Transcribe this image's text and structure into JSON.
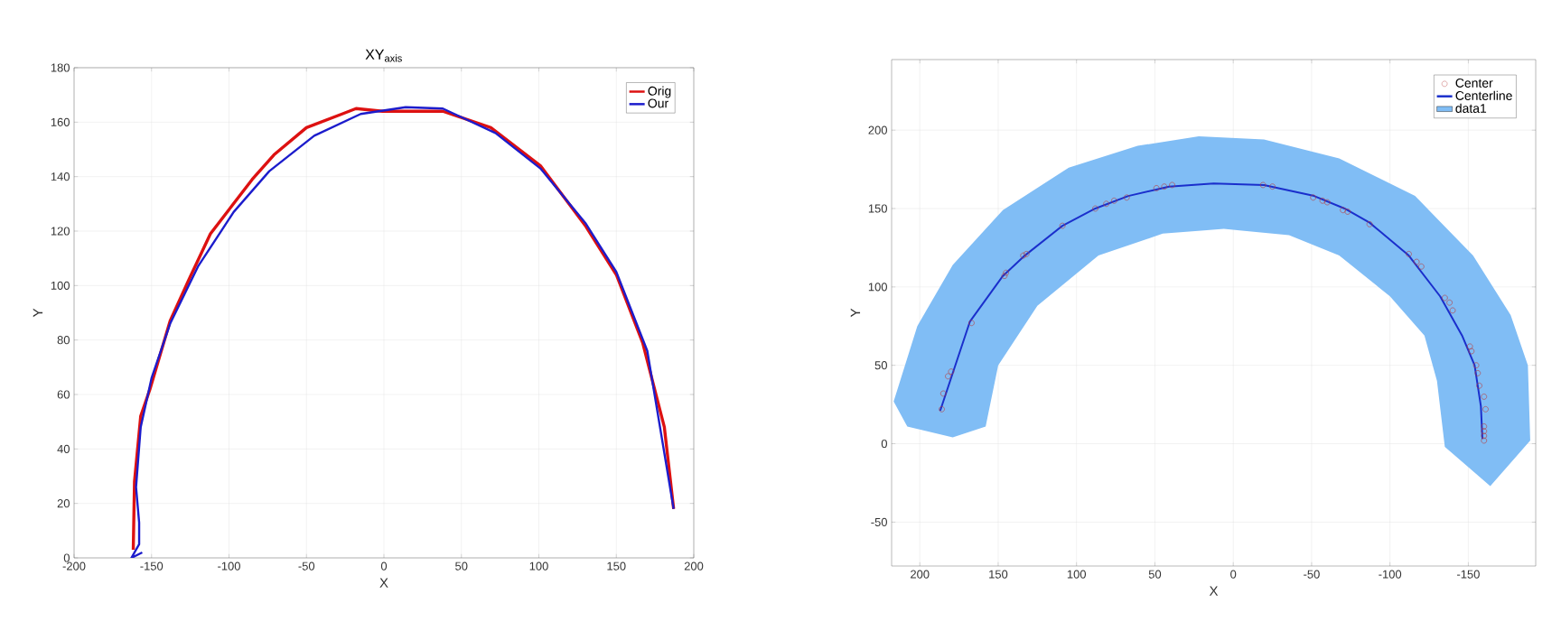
{
  "chart_data": [
    {
      "type": "line",
      "title": "XY$_{axis}$",
      "xlabel": "X",
      "ylabel": "Y",
      "xlim": [
        -200,
        200
      ],
      "ylim": [
        0,
        180
      ],
      "xticks": [
        -200,
        -150,
        -100,
        -50,
        0,
        50,
        100,
        150,
        200
      ],
      "yticks": [
        0,
        20,
        40,
        60,
        80,
        100,
        120,
        140,
        160,
        180
      ],
      "grid": true,
      "legend": "top right",
      "series": [
        {
          "name": "Orig",
          "color": "#dd1111",
          "x": [
            -161.8,
            -161,
            -157,
            -151,
            -138,
            -126,
            -112,
            -85,
            -71,
            -50,
            -27,
            -18,
            -1,
            38,
            69,
            101,
            130,
            150,
            167,
            181,
            187
          ],
          "values": [
            3,
            28,
            52,
            62,
            87,
            102,
            119,
            139,
            148,
            158,
            163,
            165,
            164,
            164,
            158,
            144,
            122,
            104,
            79,
            48,
            18
          ]
        },
        {
          "name": "Our",
          "color": "#1c1ccc",
          "x": [
            -156,
            -163,
            -158,
            -158,
            -160,
            -157,
            -150,
            -138,
            -120,
            -97,
            -74,
            -45,
            -15,
            14,
            38,
            72,
            101,
            130,
            150,
            170,
            187
          ],
          "values": [
            2,
            0,
            5,
            13,
            26,
            48,
            66,
            86,
            107,
            127,
            142,
            155,
            163,
            165.5,
            165,
            156,
            143,
            123,
            105,
            76,
            18
          ]
        }
      ]
    },
    {
      "type": "line",
      "xlabel": "X",
      "ylabel": "Y",
      "xlim": [
        218,
        -193
      ],
      "ylim": [
        -78,
        245
      ],
      "xticks": [
        200,
        150,
        100,
        50,
        0,
        -50,
        -100,
        -150
      ],
      "yticks": [
        -50,
        0,
        50,
        100,
        150,
        200
      ],
      "grid": true,
      "legend": "top right",
      "series": [
        {
          "name": "Center",
          "type": "scatter",
          "marker": "circle",
          "color": "#b83a3a",
          "x": [
            186,
            185,
            182,
            180,
            167,
            146,
            145,
            134,
            132,
            109,
            88,
            81,
            76,
            68,
            49,
            44,
            39,
            -19,
            -25,
            -51,
            -57,
            -60,
            -70,
            -73,
            -87,
            -112,
            -117,
            -120,
            -135,
            -138,
            -140,
            -151,
            -152,
            -155,
            -156,
            -157,
            -160,
            -161,
            -160,
            -160,
            -160,
            -160
          ],
          "values": [
            22,
            32,
            43,
            46,
            77,
            107,
            109,
            120,
            121,
            139,
            150,
            153,
            155,
            157,
            163,
            164,
            165,
            165,
            164,
            157,
            155,
            154,
            149,
            148,
            140,
            121,
            116,
            113,
            93,
            90,
            85,
            62,
            59,
            50,
            45,
            37,
            30,
            22,
            11,
            8,
            5,
            2
          ]
        },
        {
          "name": "Centerline",
          "type": "line",
          "color": "#1a2fcc",
          "x": [
            187,
            168,
            147,
            133,
            109,
            88,
            67,
            41,
            12.5,
            -19.6,
            -51.6,
            -71,
            -87,
            -112,
            -132,
            -146,
            -154,
            -158,
            -159
          ],
          "values": [
            21,
            78,
            107,
            120,
            139,
            150,
            158,
            164,
            166,
            165,
            158,
            150,
            141,
            120,
            94,
            69,
            50,
            24,
            3
          ]
        },
        {
          "name": "data1",
          "type": "area",
          "color": "#80bdf5",
          "x": [
            216.7,
            201.6,
            179,
            147,
            105,
            61,
            22,
            -19.6,
            -67.6,
            -116,
            -153,
            -177,
            -188,
            -189.5,
            -164,
            -135,
            -130,
            -122,
            -100,
            -67.6,
            -35.6,
            6,
            45,
            86,
            125,
            150,
            158,
            179,
            208
          ],
          "values": [
            27,
            75,
            114,
            149,
            176,
            190,
            196,
            194,
            182,
            158,
            120,
            82,
            50,
            2,
            -27,
            -2,
            40,
            69,
            94,
            120,
            133,
            137,
            134,
            120,
            88,
            50,
            11,
            4,
            11
          ]
        }
      ]
    }
  ]
}
